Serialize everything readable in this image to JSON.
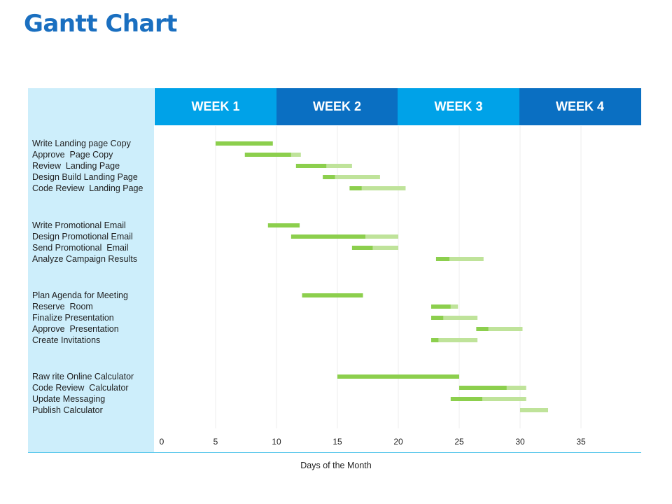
{
  "title": "Gantt Chart",
  "weeks": [
    {
      "label": "WEEK 1",
      "color": "#00a2e8"
    },
    {
      "label": "WEEK 2",
      "color": "#0a6fc2"
    },
    {
      "label": "WEEK 3",
      "color": "#00a2e8"
    },
    {
      "label": "WEEK 4",
      "color": "#0a6fc2"
    }
  ],
  "chart_data": {
    "type": "bar",
    "subtype": "gantt",
    "xlabel": "Days of the Month",
    "xlim": [
      0,
      40
    ],
    "xticks": [
      0,
      5,
      10,
      15,
      20,
      25,
      30,
      35
    ],
    "grid": true,
    "colors": {
      "done": "#8ccf4d",
      "remaining": "#bfe39a"
    },
    "groups": [
      {
        "tasks": [
          {
            "name": "Write Landing page Copy",
            "start": 5,
            "done_end": 9.7,
            "end": 9.7
          },
          {
            "name": "Approve  Page Copy",
            "start": 7.4,
            "done_end": 11.2,
            "end": 12
          },
          {
            "name": "Review  Landing Page",
            "start": 11.6,
            "done_end": 14.1,
            "end": 16.2
          },
          {
            "name": "Design Build Landing Page",
            "start": 13.8,
            "done_end": 14.8,
            "end": 18.5
          },
          {
            "name": "Code Review  Landing Page",
            "start": 16,
            "done_end": 17,
            "end": 20.6
          }
        ]
      },
      {
        "tasks": [
          {
            "name": "Write Promotional Email",
            "start": 9.3,
            "done_end": 11.9,
            "end": 11.9
          },
          {
            "name": "Design Promotional Email",
            "start": 11.2,
            "done_end": 17.3,
            "end": 20
          },
          {
            "name": "Send Promotional  Email",
            "start": 16.2,
            "done_end": 17.9,
            "end": 20
          },
          {
            "name": "Analyze Campaign Results",
            "start": 23.1,
            "done_end": 24.2,
            "end": 27
          }
        ]
      },
      {
        "tasks": [
          {
            "name": "Plan Agenda for Meeting",
            "start": 12.1,
            "done_end": 17.1,
            "end": 17.1
          },
          {
            "name": "Reserve  Room",
            "start": 22.7,
            "done_end": 24.3,
            "end": 24.9
          },
          {
            "name": "Finalize Presentation",
            "start": 22.7,
            "done_end": 23.7,
            "end": 26.5
          },
          {
            "name": "Approve  Presentation",
            "start": 26.4,
            "done_end": 27.4,
            "end": 30.2
          },
          {
            "name": "Create Invitations",
            "start": 22.7,
            "done_end": 23.3,
            "end": 26.5
          }
        ]
      },
      {
        "tasks": [
          {
            "name": "Raw rite Online Calculator",
            "start": 15,
            "done_end": 25,
            "end": 25
          },
          {
            "name": "Code Review  Calculator",
            "start": 25,
            "done_end": 28.9,
            "end": 30.5
          },
          {
            "name": "Update Messaging",
            "start": 24.3,
            "done_end": 26.9,
            "end": 30.5
          },
          {
            "name": "Publish Calculator",
            "start": 30,
            "done_end": 30,
            "end": 32.3
          }
        ]
      }
    ]
  }
}
